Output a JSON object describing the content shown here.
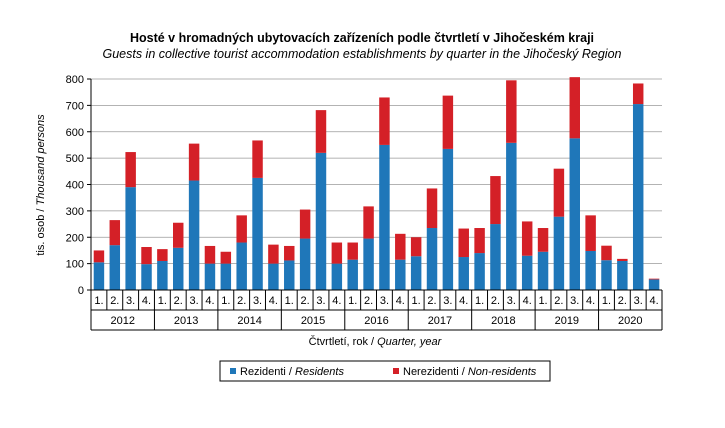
{
  "chart_data": {
    "type": "bar",
    "stacked": true,
    "title": "Hosté v hromadných ubytovacích zařízeních podle čtvrtletí v Jihočeském kraji",
    "subtitle": "Guests in collective tourist accommodation establishments by quarter in the Jihočeský Region",
    "ylabel_cz": "tis. osob /",
    "ylabel_en": "Thousand persons",
    "xlabel_cz": "Čtvrtletí, rok /",
    "xlabel_en": "Quarter, year",
    "ylim": [
      0,
      800
    ],
    "yticks": [
      0,
      100,
      200,
      300,
      400,
      500,
      600,
      700,
      800
    ],
    "quarter_labels": [
      "1.",
      "2.",
      "3.",
      "4."
    ],
    "years": [
      "2012",
      "2013",
      "2014",
      "2015",
      "2016",
      "2017",
      "2018",
      "2019",
      "2020"
    ],
    "series": [
      {
        "name_cz": "Rezidenti /",
        "name_en": "Residents",
        "color": "#1f77b9",
        "values": [
          105,
          170,
          390,
          98,
          110,
          160,
          415,
          100,
          100,
          180,
          425,
          100,
          112,
          195,
          520,
          100,
          115,
          195,
          550,
          115,
          128,
          235,
          535,
          125,
          140,
          250,
          558,
          130,
          145,
          278,
          575,
          148,
          113,
          110,
          705,
          40
        ]
      },
      {
        "name_cz": "Nerezidenti /",
        "name_en": "Non-residents",
        "color": "#d42027",
        "values": [
          45,
          95,
          133,
          65,
          45,
          95,
          140,
          67,
          45,
          103,
          142,
          72,
          55,
          110,
          162,
          80,
          65,
          122,
          180,
          98,
          72,
          150,
          202,
          108,
          95,
          182,
          237,
          130,
          90,
          182,
          232,
          135,
          55,
          8,
          78,
          3
        ]
      }
    ]
  }
}
